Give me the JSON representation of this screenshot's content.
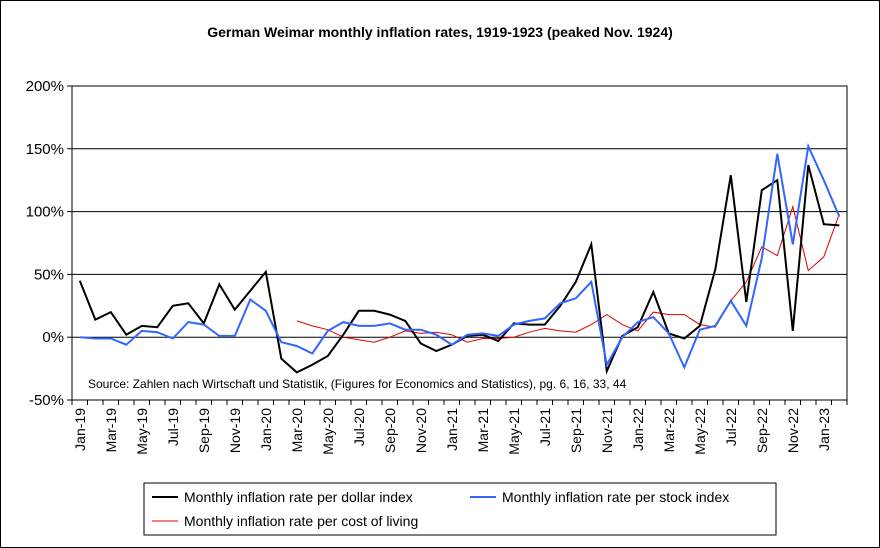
{
  "chart_data": {
    "type": "line",
    "title": "German Weimar monthly inflation rates, 1919-1923 (peaked Nov. 1924)",
    "annotation": "Source: Zahlen nach Wirtschaft und Statistik,  (Figures for Economics and Statistics), pg. 6, 16, 33, 44",
    "ylim": [
      -50,
      200
    ],
    "yticks": [
      "-50%",
      "0%",
      "50%",
      "100%",
      "150%",
      "200%"
    ],
    "ytick_values": [
      -50,
      0,
      50,
      100,
      150,
      200
    ],
    "x_tick_labels": [
      "Jan-19",
      "Mar-19",
      "May-19",
      "Jul-19",
      "Sep-19",
      "Nov-19",
      "Jan-20",
      "Mar-20",
      "May-20",
      "Jul-20",
      "Sep-20",
      "Nov-20",
      "Jan-21",
      "Mar-21",
      "May-21",
      "Jul-21",
      "Sep-21",
      "Nov-21",
      "Jan-22",
      "Mar-22",
      "May-22",
      "Jul-22",
      "Sep-22",
      "Nov-22",
      "Jan-23"
    ],
    "months": [
      "Jan-19",
      "Feb-19",
      "Mar-19",
      "Apr-19",
      "May-19",
      "Jun-19",
      "Jul-19",
      "Aug-19",
      "Sep-19",
      "Oct-19",
      "Nov-19",
      "Dec-19",
      "Jan-20",
      "Feb-20",
      "Mar-20",
      "Apr-20",
      "May-20",
      "Jun-20",
      "Jul-20",
      "Aug-20",
      "Sep-20",
      "Oct-20",
      "Nov-20",
      "Dec-20",
      "Jan-21",
      "Feb-21",
      "Mar-21",
      "Apr-21",
      "May-21",
      "Jun-21",
      "Jul-21",
      "Aug-21",
      "Sep-21",
      "Oct-21",
      "Nov-21",
      "Dec-21",
      "Jan-22",
      "Feb-22",
      "Mar-22",
      "Apr-22",
      "May-22",
      "Jun-22",
      "Jul-22",
      "Aug-22",
      "Sep-22",
      "Oct-22",
      "Nov-22",
      "Dec-22",
      "Jan-23",
      "Feb-23"
    ],
    "grid": "horizontal",
    "legend_position": "bottom",
    "series": [
      {
        "name": "Monthly inflation rate per dollar index",
        "color": "#000000",
        "x": [
          "Jan-19",
          "Feb-19",
          "Mar-19",
          "Apr-19",
          "May-19",
          "Jun-19",
          "Jul-19",
          "Aug-19",
          "Sep-19",
          "Oct-19",
          "Nov-19",
          "Dec-19",
          "Jan-20",
          "Feb-20",
          "Mar-20",
          "Apr-20",
          "May-20",
          "Jun-20",
          "Jul-20",
          "Aug-20",
          "Sep-20",
          "Oct-20",
          "Nov-20",
          "Dec-20",
          "Jan-21",
          "Feb-21",
          "Mar-21",
          "Apr-21",
          "May-21",
          "Jun-21",
          "Jul-21",
          "Aug-21",
          "Sep-21",
          "Oct-21",
          "Nov-21",
          "Dec-21",
          "Jan-22",
          "Feb-22",
          "Mar-22",
          "Apr-22",
          "May-22",
          "Jun-22",
          "Jul-22",
          "Aug-22",
          "Sep-22",
          "Oct-22",
          "Nov-22",
          "Dec-22",
          "Jan-23",
          "Feb-23"
        ],
        "values": [
          45,
          14,
          20,
          2,
          9,
          8,
          25,
          27,
          11,
          42,
          22,
          37,
          52,
          -17,
          -28,
          -22,
          -15,
          2,
          21,
          21,
          18,
          13,
          -5,
          -11,
          -6,
          1,
          2,
          -3,
          11,
          10,
          10,
          25,
          44,
          74,
          -27,
          1,
          8,
          36,
          3,
          -1,
          9,
          54,
          129,
          28,
          117,
          125,
          5,
          137,
          90,
          89
        ]
      },
      {
        "name": "Monthly inflation rate per stock index",
        "color": "#3366ff",
        "x": [
          "Jan-19",
          "Feb-19",
          "Mar-19",
          "Apr-19",
          "May-19",
          "Jun-19",
          "Jul-19",
          "Aug-19",
          "Sep-19",
          "Oct-19",
          "Nov-19",
          "Dec-19",
          "Jan-20",
          "Feb-20",
          "Mar-20",
          "Apr-20",
          "May-20",
          "Jun-20",
          "Jul-20",
          "Aug-20",
          "Sep-20",
          "Oct-20",
          "Nov-20",
          "Dec-20",
          "Jan-21",
          "Feb-21",
          "Mar-21",
          "Apr-21",
          "May-21",
          "Jun-21",
          "Jul-21",
          "Aug-21",
          "Sep-21",
          "Oct-21",
          "Nov-21",
          "Dec-21",
          "Jan-22",
          "Feb-22",
          "Mar-22",
          "Apr-22",
          "May-22",
          "Jun-22",
          "Jul-22",
          "Aug-22",
          "Sep-22",
          "Oct-22",
          "Nov-22",
          "Dec-22",
          "Jan-23",
          "Feb-23"
        ],
        "values": [
          0,
          -1,
          -1,
          -6,
          5,
          4,
          -1,
          12,
          10,
          1,
          1,
          30,
          21,
          -4,
          -7,
          -13,
          5,
          12,
          9,
          9,
          11,
          6,
          6,
          2,
          -6,
          2,
          3,
          1,
          10,
          13,
          15,
          27,
          31,
          44,
          -22,
          0,
          12,
          16,
          3,
          -24,
          6,
          9,
          29,
          9,
          63,
          146,
          74,
          152,
          125,
          96
        ]
      },
      {
        "name": "Monthly inflation rate per cost of living",
        "color": "#e00000",
        "x": [
          "Mar-20",
          "Apr-20",
          "May-20",
          "Jun-20",
          "Jul-20",
          "Aug-20",
          "Sep-20",
          "Oct-20",
          "Nov-20",
          "Dec-20",
          "Jan-21",
          "Feb-21",
          "Mar-21",
          "Apr-21",
          "May-21",
          "Jun-21",
          "Jul-21",
          "Aug-21",
          "Sep-21",
          "Oct-21",
          "Nov-21",
          "Dec-21",
          "Jan-22",
          "Feb-22",
          "Mar-22",
          "Apr-22",
          "May-22",
          "Jun-22",
          "Jul-22",
          "Aug-22",
          "Sep-22",
          "Oct-22",
          "Nov-22",
          "Dec-22",
          "Jan-23",
          "Feb-23"
        ],
        "values": [
          13,
          9,
          6,
          0,
          -2,
          -4,
          0,
          5,
          3,
          4,
          2,
          -4,
          -1,
          -1,
          0,
          4,
          7,
          5,
          4,
          10,
          18,
          10,
          5,
          20,
          18,
          18,
          10,
          8,
          29,
          44,
          72,
          65,
          104,
          53,
          64,
          98
        ]
      }
    ]
  }
}
